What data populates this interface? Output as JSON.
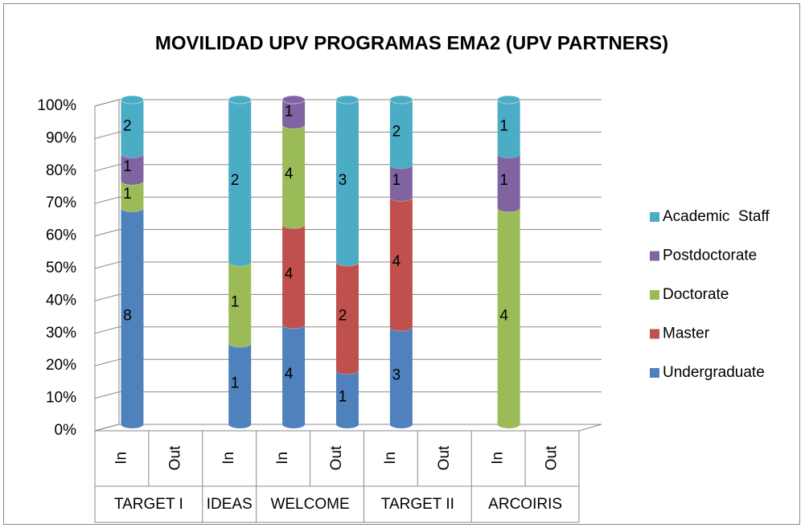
{
  "chart_data": {
    "type": "bar",
    "stacking": "percent",
    "title": "MOVILIDAD UPV PROGRAMAS EMA2   (UPV PARTNERS)",
    "groups": [
      {
        "name": "TARGET I",
        "categories": [
          "In",
          "Out"
        ]
      },
      {
        "name": "IDEAS",
        "categories": [
          "In"
        ]
      },
      {
        "name": "WELCOME",
        "categories": [
          "In",
          "Out"
        ]
      },
      {
        "name": "TARGET II",
        "categories": [
          "In",
          "Out"
        ]
      },
      {
        "name": "ARCOIRIS",
        "categories": [
          "In",
          "Out"
        ]
      }
    ],
    "series": [
      {
        "name": "Undergraduate",
        "color": "#4f81bd",
        "values": [
          8,
          null,
          1,
          4,
          1,
          3,
          null,
          null,
          null
        ]
      },
      {
        "name": "Master",
        "color": "#c0504d",
        "values": [
          null,
          null,
          null,
          4,
          2,
          4,
          null,
          null,
          null
        ]
      },
      {
        "name": "Doctorate",
        "color": "#9bbb59",
        "values": [
          1,
          null,
          1,
          4,
          null,
          null,
          null,
          4,
          null
        ]
      },
      {
        "name": "Postdoctorate",
        "color": "#8064a2",
        "values": [
          1,
          null,
          null,
          1,
          null,
          1,
          null,
          1,
          null
        ]
      },
      {
        "name": "Academic  Staff",
        "color": "#4bacc6",
        "values": [
          2,
          null,
          2,
          null,
          3,
          2,
          null,
          1,
          null
        ]
      }
    ],
    "ylim": [
      0,
      100
    ],
    "yticks": [
      {
        "value": 0,
        "label": "0%"
      },
      {
        "value": 10,
        "label": "10%"
      },
      {
        "value": 20,
        "label": "20%"
      },
      {
        "value": 30,
        "label": "30%"
      },
      {
        "value": 40,
        "label": "40%"
      },
      {
        "value": 50,
        "label": "50%"
      },
      {
        "value": 60,
        "label": "60%"
      },
      {
        "value": 70,
        "label": "70%"
      },
      {
        "value": 80,
        "label": "80%"
      },
      {
        "value": 90,
        "label": "90%"
      },
      {
        "value": 100,
        "label": "100%"
      }
    ],
    "grid": true,
    "legend": "right"
  }
}
